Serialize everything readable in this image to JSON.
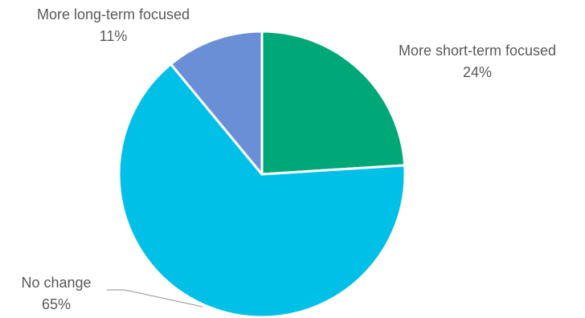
{
  "chart_data": {
    "type": "pie",
    "slices": [
      {
        "name": "More short-term focused",
        "value": 24,
        "label": "24%",
        "color": "#00A878"
      },
      {
        "name": "No change",
        "value": 65,
        "label": "65%",
        "color": "#00C0E8"
      },
      {
        "name": "More long-term focused",
        "value": 11,
        "label": "11%",
        "color": "#6B8FD6"
      }
    ],
    "start_position": "top (12 o'clock), clockwise",
    "legend": "none (category labels beside slices)",
    "slice_border_color": "#FFFFFF"
  }
}
